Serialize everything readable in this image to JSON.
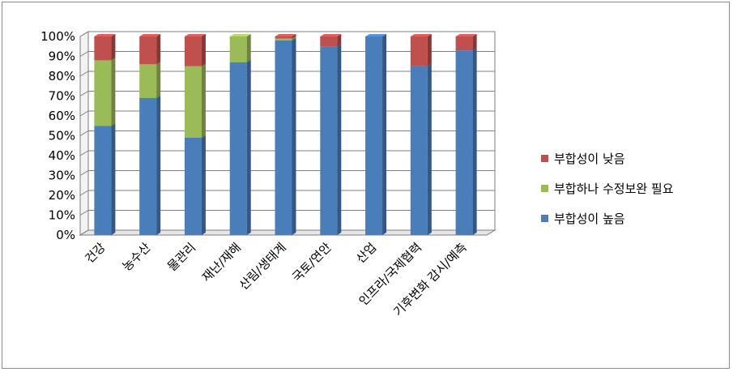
{
  "chart_data": {
    "type": "bar",
    "stacked": true,
    "percent": true,
    "three_d": true,
    "categories": [
      "건강",
      "농수산",
      "물관리",
      "재난/재해",
      "산림/생태계",
      "국토/연안",
      "산업",
      "인프라/국제협력",
      "기후변화 감시/예측"
    ],
    "series": [
      {
        "name": "부합성이 높음",
        "color": "#4a7ebb",
        "values": [
          55,
          69,
          49,
          87,
          98,
          95,
          100,
          85,
          93
        ]
      },
      {
        "name": "부합하나 수정보완 필요",
        "color": "#9bbb59",
        "values": [
          33,
          17,
          36,
          13,
          1,
          0,
          0,
          0,
          0
        ]
      },
      {
        "name": "부합성이 낮음",
        "color": "#c0504d",
        "values": [
          12,
          14,
          15,
          0,
          1,
          5,
          0,
          15,
          7
        ]
      }
    ],
    "legend_order": [
      "부합성이 낮음",
      "부합하나 수정보완 필요",
      "부합성이 높음"
    ],
    "y_ticks": [
      "0%",
      "10%",
      "20%",
      "30%",
      "40%",
      "50%",
      "60%",
      "70%",
      "80%",
      "90%",
      "100%"
    ],
    "ylim": [
      0,
      100
    ],
    "grid": true,
    "legend_position": "right"
  }
}
